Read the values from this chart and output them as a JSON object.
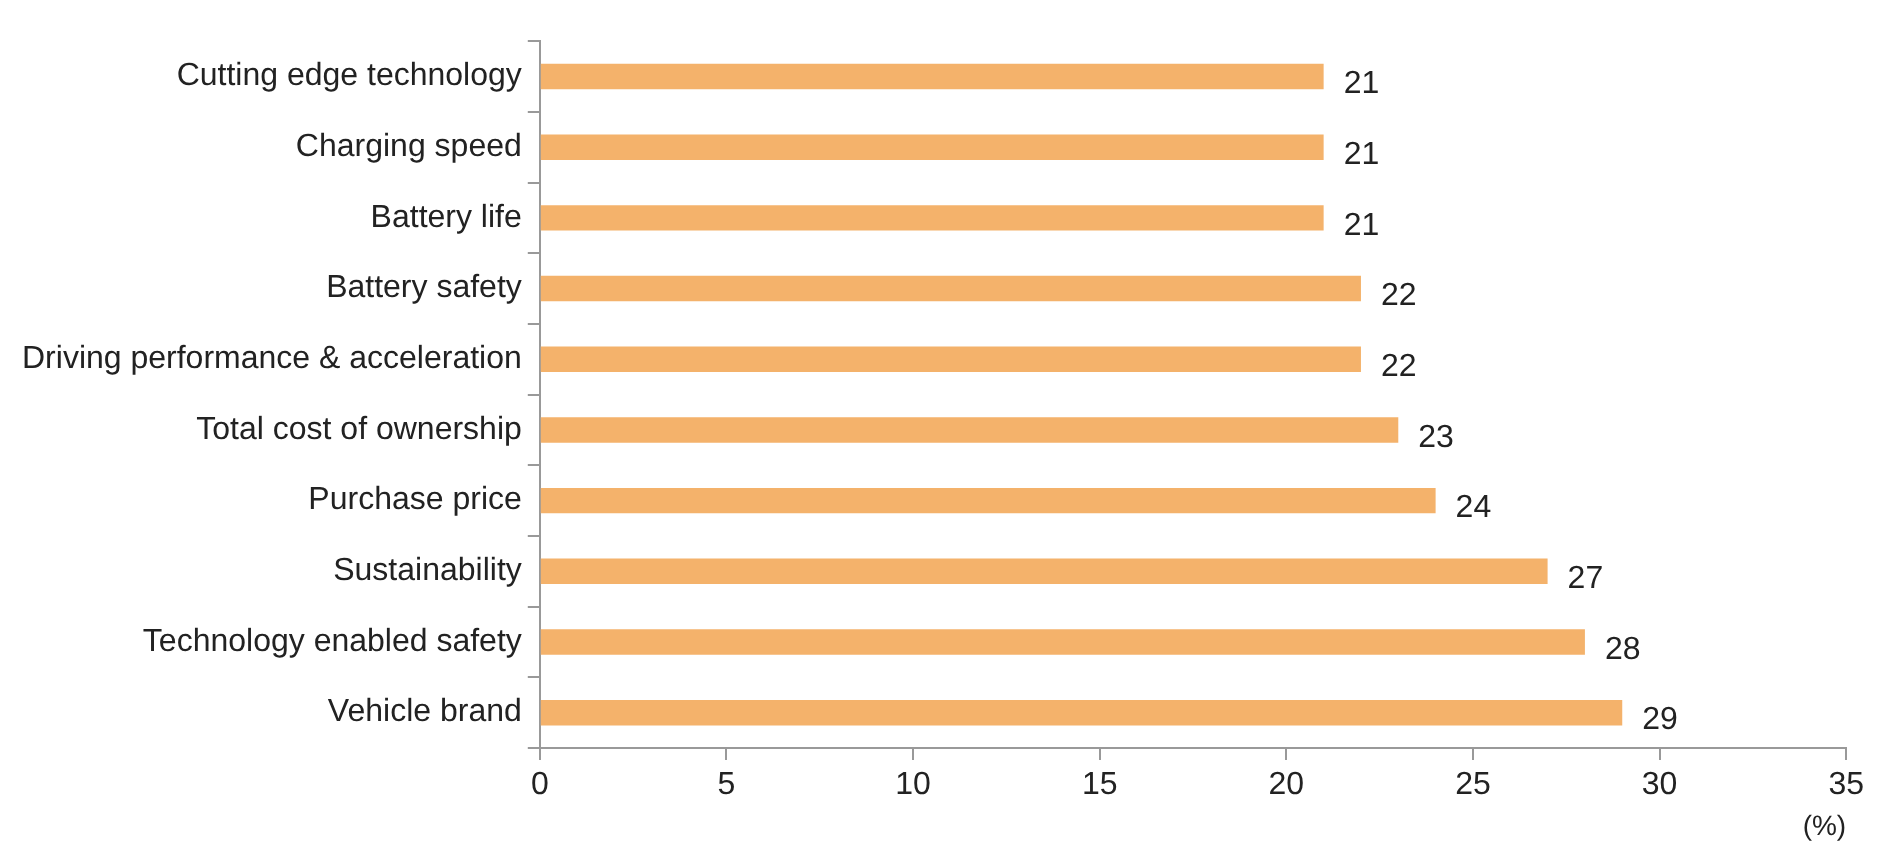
{
  "chart_data": {
    "type": "bar",
    "orientation": "horizontal",
    "xlabel": "(%)",
    "categories": [
      "Cutting edge technology",
      "Charging speed",
      "Battery life",
      "Battery safety",
      "Driving performance & acceleration",
      "Total cost of ownership",
      "Purchase price",
      "Sustainability",
      "Technology enabled safety",
      "Vehicle brand"
    ],
    "values": [
      21,
      21,
      21,
      22,
      22,
      23,
      24,
      27,
      28,
      29
    ],
    "color": "#f4b26b",
    "xlim": [
      0,
      35
    ],
    "xticks": [
      0,
      5,
      10,
      15,
      20,
      25,
      30,
      35
    ],
    "grid": false,
    "legend": false,
    "data_labels": true
  }
}
